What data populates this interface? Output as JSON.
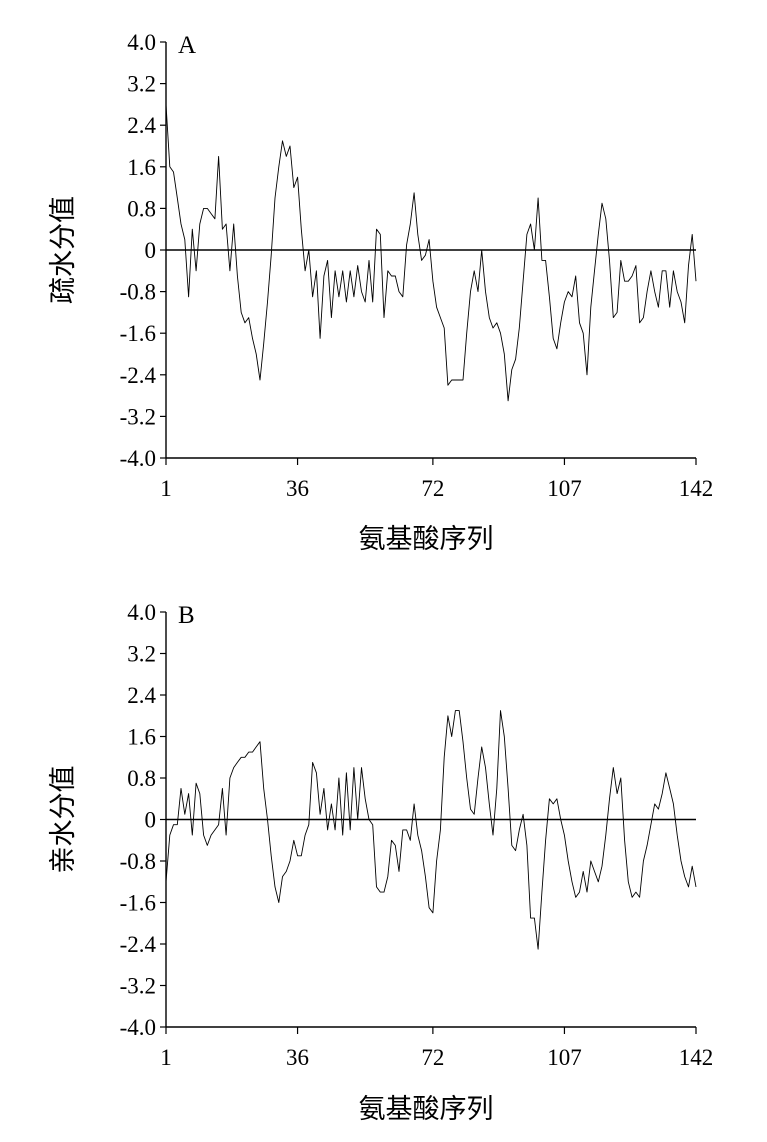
{
  "chart_data": [
    {
      "type": "line",
      "panel_label": "A",
      "xlabel": "氨基酸序列",
      "ylabel": "疏水分值",
      "xlim": [
        1,
        142
      ],
      "ylim": [
        -4.0,
        4.0
      ],
      "x_ticks": [
        "1",
        "36",
        "72",
        "107",
        "142"
      ],
      "x_tick_values": [
        1,
        36,
        72,
        107,
        142
      ],
      "y_ticks": [
        "4.0",
        "3.2",
        "2.4",
        "1.6",
        "0.8",
        "0",
        "-0.8",
        "-1.6",
        "-2.4",
        "-3.2",
        "-4.0"
      ],
      "y_tick_values": [
        4.0,
        3.2,
        2.4,
        1.6,
        0.8,
        0,
        -0.8,
        -1.6,
        -2.4,
        -3.2,
        -4.0
      ],
      "baseline": 0,
      "series": [
        {
          "x": [
            1,
            2,
            3,
            4,
            5,
            6,
            7,
            8,
            9,
            10,
            11,
            12,
            13,
            14,
            15,
            16,
            17,
            18,
            19,
            20,
            21,
            22,
            23,
            24,
            25,
            26,
            27,
            28,
            29,
            30,
            31,
            32,
            33,
            34,
            35,
            36,
            37,
            38,
            39,
            40,
            41,
            42,
            43,
            44,
            45,
            46,
            47,
            48,
            49,
            50,
            51,
            52,
            53,
            54,
            55,
            56,
            57,
            58,
            59,
            60,
            61,
            62,
            63,
            64,
            65,
            66,
            67,
            68,
            69,
            70,
            71,
            72,
            73,
            74,
            75,
            76,
            77,
            78,
            79,
            80,
            81,
            82,
            83,
            84,
            85,
            86,
            87,
            88,
            89,
            90,
            91,
            92,
            93,
            94,
            95,
            96,
            97,
            98,
            99,
            100,
            101,
            102,
            103,
            104,
            105,
            106,
            107,
            108,
            109,
            110,
            111,
            112,
            113,
            114,
            115,
            116,
            117,
            118,
            119,
            120,
            121,
            122,
            123,
            124,
            125,
            126,
            127,
            128,
            129,
            130,
            131,
            132,
            133,
            134,
            135,
            136,
            137,
            138,
            139,
            140,
            141,
            142
          ],
          "y": [
            2.8,
            1.6,
            1.5,
            1.0,
            0.5,
            0.2,
            -0.9,
            0.4,
            -0.4,
            0.5,
            0.8,
            0.8,
            0.7,
            0.6,
            1.8,
            0.4,
            0.5,
            -0.4,
            0.5,
            -0.5,
            -1.2,
            -1.4,
            -1.3,
            -1.7,
            -2.0,
            -2.5,
            -1.8,
            -1.0,
            -0.1,
            1.0,
            1.6,
            2.1,
            1.8,
            2.0,
            1.2,
            1.4,
            0.4,
            -0.4,
            0.0,
            -0.9,
            -0.4,
            -1.7,
            -0.5,
            -0.2,
            -1.3,
            -0.4,
            -0.9,
            -0.4,
            -1.0,
            -0.4,
            -0.9,
            -0.3,
            -0.8,
            -1.0,
            -0.2,
            -1.0,
            0.4,
            0.3,
            -1.3,
            -0.4,
            -0.5,
            -0.5,
            -0.8,
            -0.9,
            0.1,
            0.5,
            1.1,
            0.3,
            -0.2,
            -0.1,
            0.2,
            -0.6,
            -1.1,
            -1.3,
            -1.5,
            -2.6,
            -2.5,
            -2.5,
            -2.5,
            -2.5,
            -1.6,
            -0.8,
            -0.4,
            -0.8,
            0.0,
            -0.8,
            -1.3,
            -1.5,
            -1.4,
            -1.6,
            -2.0,
            -2.9,
            -2.3,
            -2.1,
            -1.5,
            -0.6,
            0.3,
            0.5,
            0.0,
            1.0,
            -0.2,
            -0.2,
            -0.9,
            -1.7,
            -1.9,
            -1.4,
            -1.0,
            -0.8,
            -0.9,
            -0.5,
            -1.4,
            -1.6,
            -2.4,
            -1.1,
            -0.4,
            0.3,
            0.9,
            0.6,
            -0.2,
            -1.3,
            -1.2,
            -0.2,
            -0.6,
            -0.6,
            -0.5,
            -0.3,
            -1.4,
            -1.3,
            -0.8,
            -0.4,
            -0.8,
            -1.1,
            -0.4,
            -0.4,
            -1.1,
            -0.4,
            -0.8,
            -1.0,
            -1.4,
            -0.3,
            0.3,
            -0.6
          ]
        }
      ]
    },
    {
      "type": "line",
      "panel_label": "B",
      "xlabel": "氨基酸序列",
      "ylabel": "亲水分值",
      "xlim": [
        1,
        142
      ],
      "ylim": [
        -4.0,
        4.0
      ],
      "x_ticks": [
        "1",
        "36",
        "72",
        "107",
        "142"
      ],
      "x_tick_values": [
        1,
        36,
        72,
        107,
        142
      ],
      "y_ticks": [
        "4.0",
        "3.2",
        "2.4",
        "1.6",
        "0.8",
        "0",
        "-0.8",
        "-1.6",
        "-2.4",
        "-3.2",
        "-4.0"
      ],
      "y_tick_values": [
        4.0,
        3.2,
        2.4,
        1.6,
        0.8,
        0,
        -0.8,
        -1.6,
        -2.4,
        -3.2,
        -4.0
      ],
      "baseline": 0,
      "series": [
        {
          "x": [
            1,
            2,
            3,
            4,
            5,
            6,
            7,
            8,
            9,
            10,
            11,
            12,
            13,
            14,
            15,
            16,
            17,
            18,
            19,
            20,
            21,
            22,
            23,
            24,
            25,
            26,
            27,
            28,
            29,
            30,
            31,
            32,
            33,
            34,
            35,
            36,
            37,
            38,
            39,
            40,
            41,
            42,
            43,
            44,
            45,
            46,
            47,
            48,
            49,
            50,
            51,
            52,
            53,
            54,
            55,
            56,
            57,
            58,
            59,
            60,
            61,
            62,
            63,
            64,
            65,
            66,
            67,
            68,
            69,
            70,
            71,
            72,
            73,
            74,
            75,
            76,
            77,
            78,
            79,
            80,
            81,
            82,
            83,
            84,
            85,
            86,
            87,
            88,
            89,
            90,
            91,
            92,
            93,
            94,
            95,
            96,
            97,
            98,
            99,
            100,
            101,
            102,
            103,
            104,
            105,
            106,
            107,
            108,
            109,
            110,
            111,
            112,
            113,
            114,
            115,
            116,
            117,
            118,
            119,
            120,
            121,
            122,
            123,
            124,
            125,
            126,
            127,
            128,
            129,
            130,
            131,
            132,
            133,
            134,
            135,
            136,
            137,
            138,
            139,
            140,
            141,
            142
          ],
          "y": [
            -1.2,
            -0.3,
            -0.1,
            -0.1,
            0.6,
            0.1,
            0.5,
            -0.3,
            0.7,
            0.5,
            -0.3,
            -0.5,
            -0.3,
            -0.2,
            -0.1,
            0.6,
            -0.3,
            0.8,
            1.0,
            1.1,
            1.2,
            1.2,
            1.3,
            1.3,
            1.4,
            1.5,
            0.6,
            0.0,
            -0.7,
            -1.3,
            -1.6,
            -1.1,
            -1.0,
            -0.8,
            -0.4,
            -0.7,
            -0.7,
            -0.3,
            -0.1,
            1.1,
            0.9,
            0.1,
            0.6,
            -0.2,
            0.3,
            -0.2,
            0.8,
            -0.3,
            0.9,
            -0.2,
            1.0,
            0.0,
            1.0,
            0.4,
            0.0,
            -0.1,
            -1.3,
            -1.4,
            -1.4,
            -1.1,
            -0.4,
            -0.5,
            -1.0,
            -0.2,
            -0.2,
            -0.4,
            0.3,
            -0.3,
            -0.6,
            -1.1,
            -1.7,
            -1.8,
            -0.8,
            -0.2,
            1.2,
            2.0,
            1.6,
            2.1,
            2.1,
            1.5,
            0.8,
            0.2,
            0.1,
            0.8,
            1.4,
            1.0,
            0.3,
            -0.3,
            0.6,
            2.1,
            1.6,
            0.6,
            -0.5,
            -0.6,
            -0.2,
            0.1,
            -0.5,
            -1.9,
            -1.9,
            -2.5,
            -1.4,
            -0.4,
            0.4,
            0.3,
            0.4,
            0.0,
            -0.3,
            -0.8,
            -1.2,
            -1.5,
            -1.4,
            -1.0,
            -1.4,
            -0.8,
            -1.0,
            -1.2,
            -0.9,
            -0.3,
            0.4,
            1.0,
            0.5,
            0.8,
            -0.4,
            -1.2,
            -1.5,
            -1.4,
            -1.5,
            -0.8,
            -0.5,
            -0.1,
            0.3,
            0.2,
            0.5,
            0.9,
            0.6,
            0.3,
            -0.3,
            -0.8,
            -1.1,
            -1.3,
            -0.9,
            -1.3
          ]
        }
      ]
    }
  ]
}
